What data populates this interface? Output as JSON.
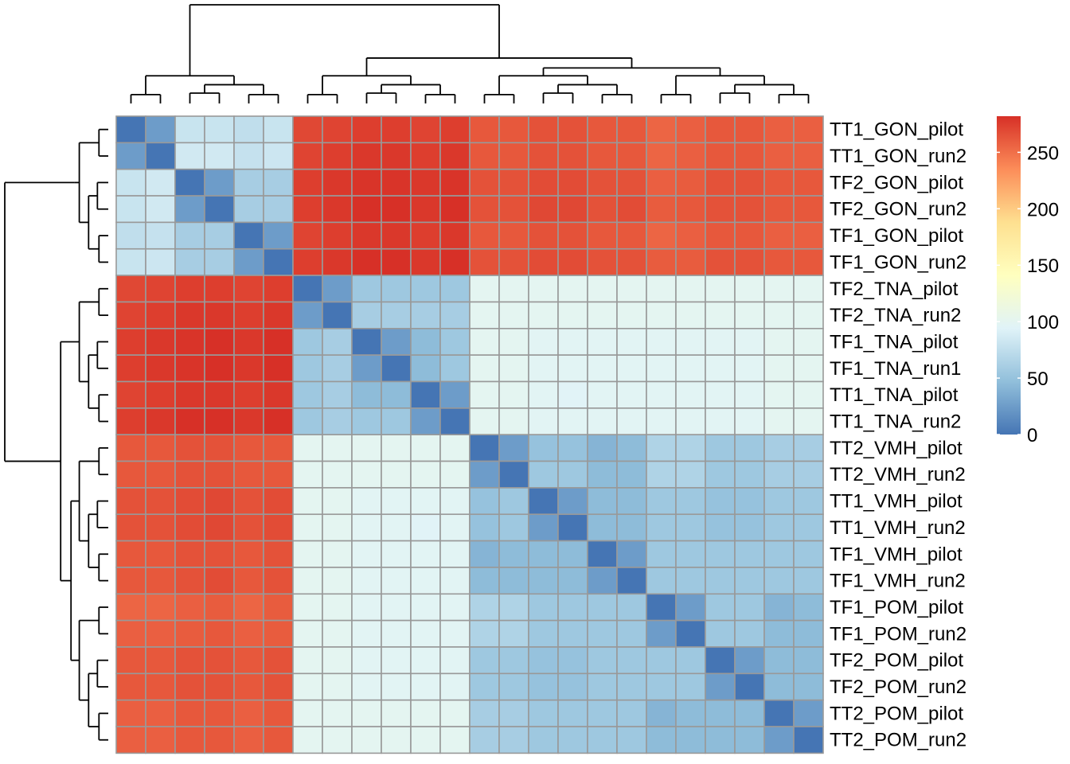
{
  "chart_data": {
    "type": "heatmap",
    "labels": [
      "TT1_GON_pilot",
      "TT1_GON_run2",
      "TF2_GON_pilot",
      "TF2_GON_run2",
      "TF1_GON_pilot",
      "TF1_GON_run2",
      "TF2_TNA_pilot",
      "TF2_TNA_run2",
      "TF1_TNA_pilot",
      "TF1_TNA_run1",
      "TT1_TNA_pilot",
      "TT1_TNA_run2",
      "TT2_VMH_pilot",
      "TT2_VMH_run2",
      "TT1_VMH_pilot",
      "TT1_VMH_run2",
      "TF1_VMH_pilot",
      "TF1_VMH_run2",
      "TF1_POM_pilot",
      "TF1_POM_run2",
      "TF2_POM_pilot",
      "TF2_POM_run2",
      "TT2_POM_pilot",
      "TT2_POM_run2"
    ],
    "groups": [
      {
        "name": "GON",
        "size": 6
      },
      {
        "name": "TNA",
        "size": 6
      },
      {
        "name": "VMH",
        "size": 6
      },
      {
        "name": "POM",
        "size": 6
      }
    ],
    "values": [
      [
        0,
        25,
        80,
        80,
        75,
        80,
        270,
        272,
        275,
        275,
        272,
        275,
        262,
        262,
        265,
        265,
        262,
        262,
        255,
        258,
        262,
        262,
        258,
        258
      ],
      [
        25,
        0,
        85,
        85,
        78,
        82,
        272,
        275,
        278,
        278,
        275,
        278,
        262,
        262,
        265,
        265,
        262,
        262,
        255,
        258,
        262,
        262,
        258,
        258
      ],
      [
        80,
        85,
        0,
        25,
        60,
        60,
        275,
        278,
        280,
        280,
        278,
        280,
        265,
        265,
        268,
        268,
        265,
        265,
        258,
        260,
        265,
        265,
        262,
        262
      ],
      [
        80,
        85,
        25,
        0,
        60,
        60,
        275,
        278,
        282,
        282,
        278,
        282,
        265,
        265,
        270,
        270,
        265,
        268,
        260,
        262,
        265,
        265,
        262,
        262
      ],
      [
        75,
        78,
        60,
        60,
        0,
        25,
        272,
        275,
        278,
        278,
        275,
        278,
        262,
        262,
        265,
        265,
        262,
        262,
        255,
        258,
        262,
        262,
        258,
        258
      ],
      [
        80,
        82,
        60,
        60,
        25,
        0,
        275,
        278,
        282,
        282,
        278,
        282,
        265,
        265,
        268,
        268,
        265,
        265,
        260,
        260,
        265,
        265,
        262,
        262
      ],
      [
        270,
        272,
        275,
        275,
        272,
        275,
        0,
        25,
        55,
        55,
        55,
        55,
        100,
        100,
        100,
        100,
        100,
        100,
        100,
        100,
        100,
        100,
        100,
        100
      ],
      [
        272,
        275,
        278,
        278,
        275,
        278,
        25,
        0,
        60,
        60,
        60,
        60,
        100,
        100,
        100,
        100,
        100,
        100,
        100,
        100,
        100,
        100,
        100,
        100
      ],
      [
        275,
        278,
        280,
        282,
        278,
        282,
        55,
        60,
        0,
        25,
        45,
        55,
        100,
        100,
        97,
        97,
        97,
        97,
        97,
        97,
        97,
        97,
        100,
        100
      ],
      [
        275,
        278,
        280,
        282,
        278,
        282,
        55,
        60,
        25,
        0,
        45,
        55,
        100,
        100,
        97,
        97,
        97,
        97,
        97,
        97,
        97,
        97,
        100,
        100
      ],
      [
        272,
        275,
        278,
        278,
        275,
        278,
        55,
        60,
        45,
        45,
        0,
        25,
        100,
        100,
        97,
        95,
        97,
        97,
        97,
        97,
        97,
        97,
        100,
        100
      ],
      [
        275,
        278,
        282,
        282,
        278,
        282,
        55,
        60,
        55,
        55,
        25,
        0,
        100,
        100,
        97,
        97,
        97,
        97,
        97,
        97,
        97,
        97,
        100,
        100
      ],
      [
        262,
        262,
        265,
        265,
        262,
        262,
        100,
        100,
        100,
        100,
        100,
        100,
        0,
        25,
        50,
        50,
        40,
        45,
        65,
        65,
        55,
        55,
        60,
        60
      ],
      [
        262,
        262,
        265,
        265,
        262,
        262,
        100,
        100,
        100,
        100,
        100,
        100,
        25,
        0,
        55,
        55,
        45,
        45,
        65,
        65,
        55,
        55,
        60,
        60
      ],
      [
        265,
        265,
        268,
        270,
        265,
        268,
        100,
        100,
        97,
        97,
        97,
        97,
        50,
        55,
        0,
        25,
        45,
        45,
        55,
        55,
        50,
        50,
        55,
        55
      ],
      [
        265,
        265,
        268,
        270,
        265,
        268,
        100,
        100,
        97,
        97,
        95,
        97,
        50,
        55,
        25,
        0,
        45,
        45,
        55,
        55,
        50,
        50,
        55,
        55
      ],
      [
        262,
        262,
        265,
        265,
        262,
        265,
        100,
        100,
        97,
        97,
        97,
        97,
        40,
        45,
        45,
        45,
        0,
        25,
        55,
        55,
        55,
        55,
        55,
        55
      ],
      [
        262,
        262,
        265,
        268,
        262,
        265,
        100,
        100,
        97,
        97,
        97,
        97,
        45,
        45,
        45,
        45,
        25,
        0,
        55,
        55,
        55,
        55,
        55,
        55
      ],
      [
        255,
        255,
        258,
        260,
        255,
        260,
        100,
        100,
        97,
        97,
        97,
        97,
        65,
        65,
        55,
        55,
        55,
        55,
        0,
        25,
        55,
        55,
        40,
        45
      ],
      [
        258,
        258,
        260,
        262,
        258,
        260,
        100,
        100,
        97,
        97,
        97,
        97,
        65,
        65,
        55,
        55,
        55,
        55,
        25,
        0,
        55,
        55,
        45,
        45
      ],
      [
        262,
        262,
        265,
        265,
        262,
        265,
        100,
        100,
        97,
        97,
        97,
        97,
        55,
        55,
        50,
        50,
        55,
        55,
        55,
        55,
        0,
        25,
        45,
        45
      ],
      [
        262,
        262,
        265,
        265,
        262,
        265,
        100,
        100,
        97,
        97,
        97,
        97,
        55,
        55,
        50,
        50,
        55,
        55,
        55,
        55,
        25,
        0,
        45,
        45
      ],
      [
        258,
        258,
        262,
        262,
        258,
        262,
        100,
        100,
        100,
        100,
        100,
        100,
        60,
        60,
        55,
        55,
        55,
        55,
        40,
        45,
        45,
        45,
        0,
        25
      ],
      [
        258,
        258,
        262,
        262,
        258,
        262,
        100,
        100,
        100,
        100,
        100,
        100,
        60,
        60,
        55,
        55,
        55,
        55,
        45,
        45,
        45,
        45,
        25,
        0
      ]
    ],
    "legend": {
      "ticks": [
        0,
        50,
        100,
        150,
        200,
        250
      ],
      "range": [
        0,
        282
      ],
      "colors": [
        "#4575b4",
        "#91bfdb",
        "#e0f3f8",
        "#ffffbf",
        "#fee090",
        "#fc8d59",
        "#d73027"
      ],
      "placement": "right"
    },
    "grid": true,
    "cell_border_color": "#999999",
    "dendrogram": "rows-and-columns"
  }
}
